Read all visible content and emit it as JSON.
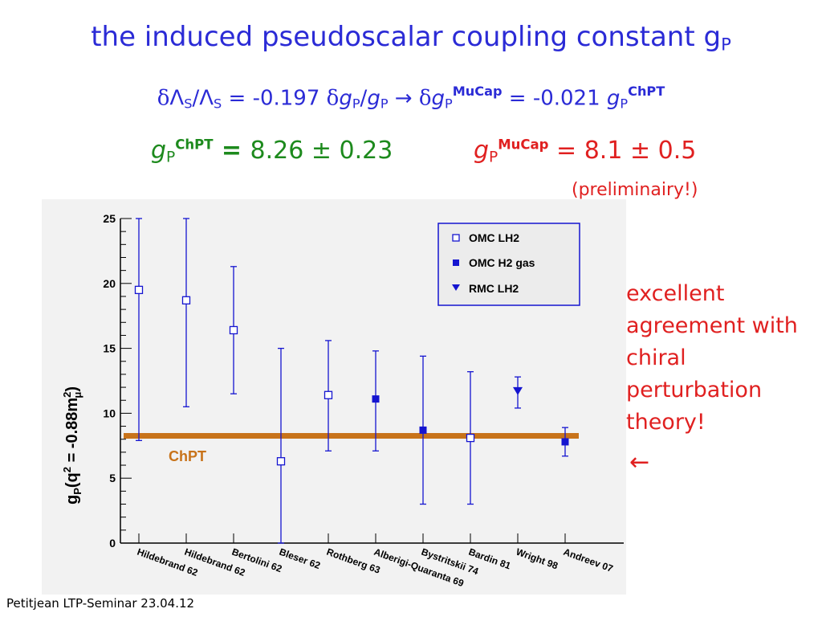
{
  "title": "the induced pseudoscalar coupling constant g",
  "title_sub": "P",
  "equation": {
    "delta": "δ",
    "lambda": "Λ",
    "s": "S",
    "slash": "/",
    "eq1": " = -0.197 ",
    "g": "g",
    "p": "P",
    "arrow": " → ",
    "mucap": "MuCap",
    "eq2": " = -0.021 ",
    "chpt": "ChPT"
  },
  "gp_theory": {
    "g": "g",
    "sub": "P",
    "sup": "ChPT",
    "equals": " = ",
    "value": "8.26 ± 0.23"
  },
  "gp_exp": {
    "g": "g",
    "sub": "P",
    "sup": "MuCap",
    "equals": " = ",
    "value": "8.1 ± 0.5"
  },
  "preliminary": "(preliminairy!)",
  "side_text": "excellent agreement with chiral perturbation theory!",
  "side_arrow": "←",
  "footer": "Petitjean LTP-Seminar 23.04.12",
  "colors": {
    "blue": "#2b2bd6",
    "green": "#1d8a1d",
    "red": "#e02020",
    "chpt_band": "#c8731a",
    "marker": "#1515d0"
  },
  "chart_data": {
    "type": "scatter",
    "ylabel_main": "g",
    "ylabel_sub": "P",
    "ylabel_rest": "(q",
    "ylabel_sup": "2",
    "ylabel_tail": " = -0.88m",
    "ylabel_mu_sup": "2",
    "ylabel_mu_sub": "μ",
    "ylabel_close": ")",
    "ylim": [
      0,
      25
    ],
    "yticks": [
      "0",
      "5",
      "10",
      "15",
      "20",
      "25"
    ],
    "categories": [
      "Hildebrand 62",
      "Hildebrand 62",
      "Bertolini 62",
      "Bleser 62",
      "Rothberg 63",
      "Alberigi-Quaranta 69",
      "Bystritskii 74",
      "Bardin 81",
      "Wright 98",
      "Andreev 07"
    ],
    "points": [
      {
        "y": 19.5,
        "low": 7.9,
        "high": 25,
        "series": "OMC LH2"
      },
      {
        "y": 18.7,
        "low": 10.5,
        "high": 25,
        "series": "OMC LH2"
      },
      {
        "y": 16.4,
        "low": 11.5,
        "high": 21.3,
        "series": "OMC LH2"
      },
      {
        "y": 6.3,
        "low": 0,
        "high": 15.0,
        "series": "OMC LH2"
      },
      {
        "y": 11.4,
        "low": 7.1,
        "high": 15.6,
        "series": "OMC LH2"
      },
      {
        "y": 11.1,
        "low": 7.1,
        "high": 14.8,
        "series": "OMC H2 gas"
      },
      {
        "y": 8.7,
        "low": 3.0,
        "high": 14.4,
        "series": "OMC H2 gas"
      },
      {
        "y": 8.1,
        "low": 3.0,
        "high": 13.2,
        "series": "OMC LH2"
      },
      {
        "y": 11.7,
        "low": 10.4,
        "high": 12.8,
        "series": "RMC LH2"
      },
      {
        "y": 7.8,
        "low": 6.7,
        "high": 8.9,
        "series": "OMC H2 gas"
      }
    ],
    "legend": [
      "OMC LH2",
      "OMC H2 gas",
      "RMC LH2"
    ],
    "legend_position": "top-right",
    "reference_line": {
      "value": 8.26,
      "label": "ChPT"
    }
  }
}
